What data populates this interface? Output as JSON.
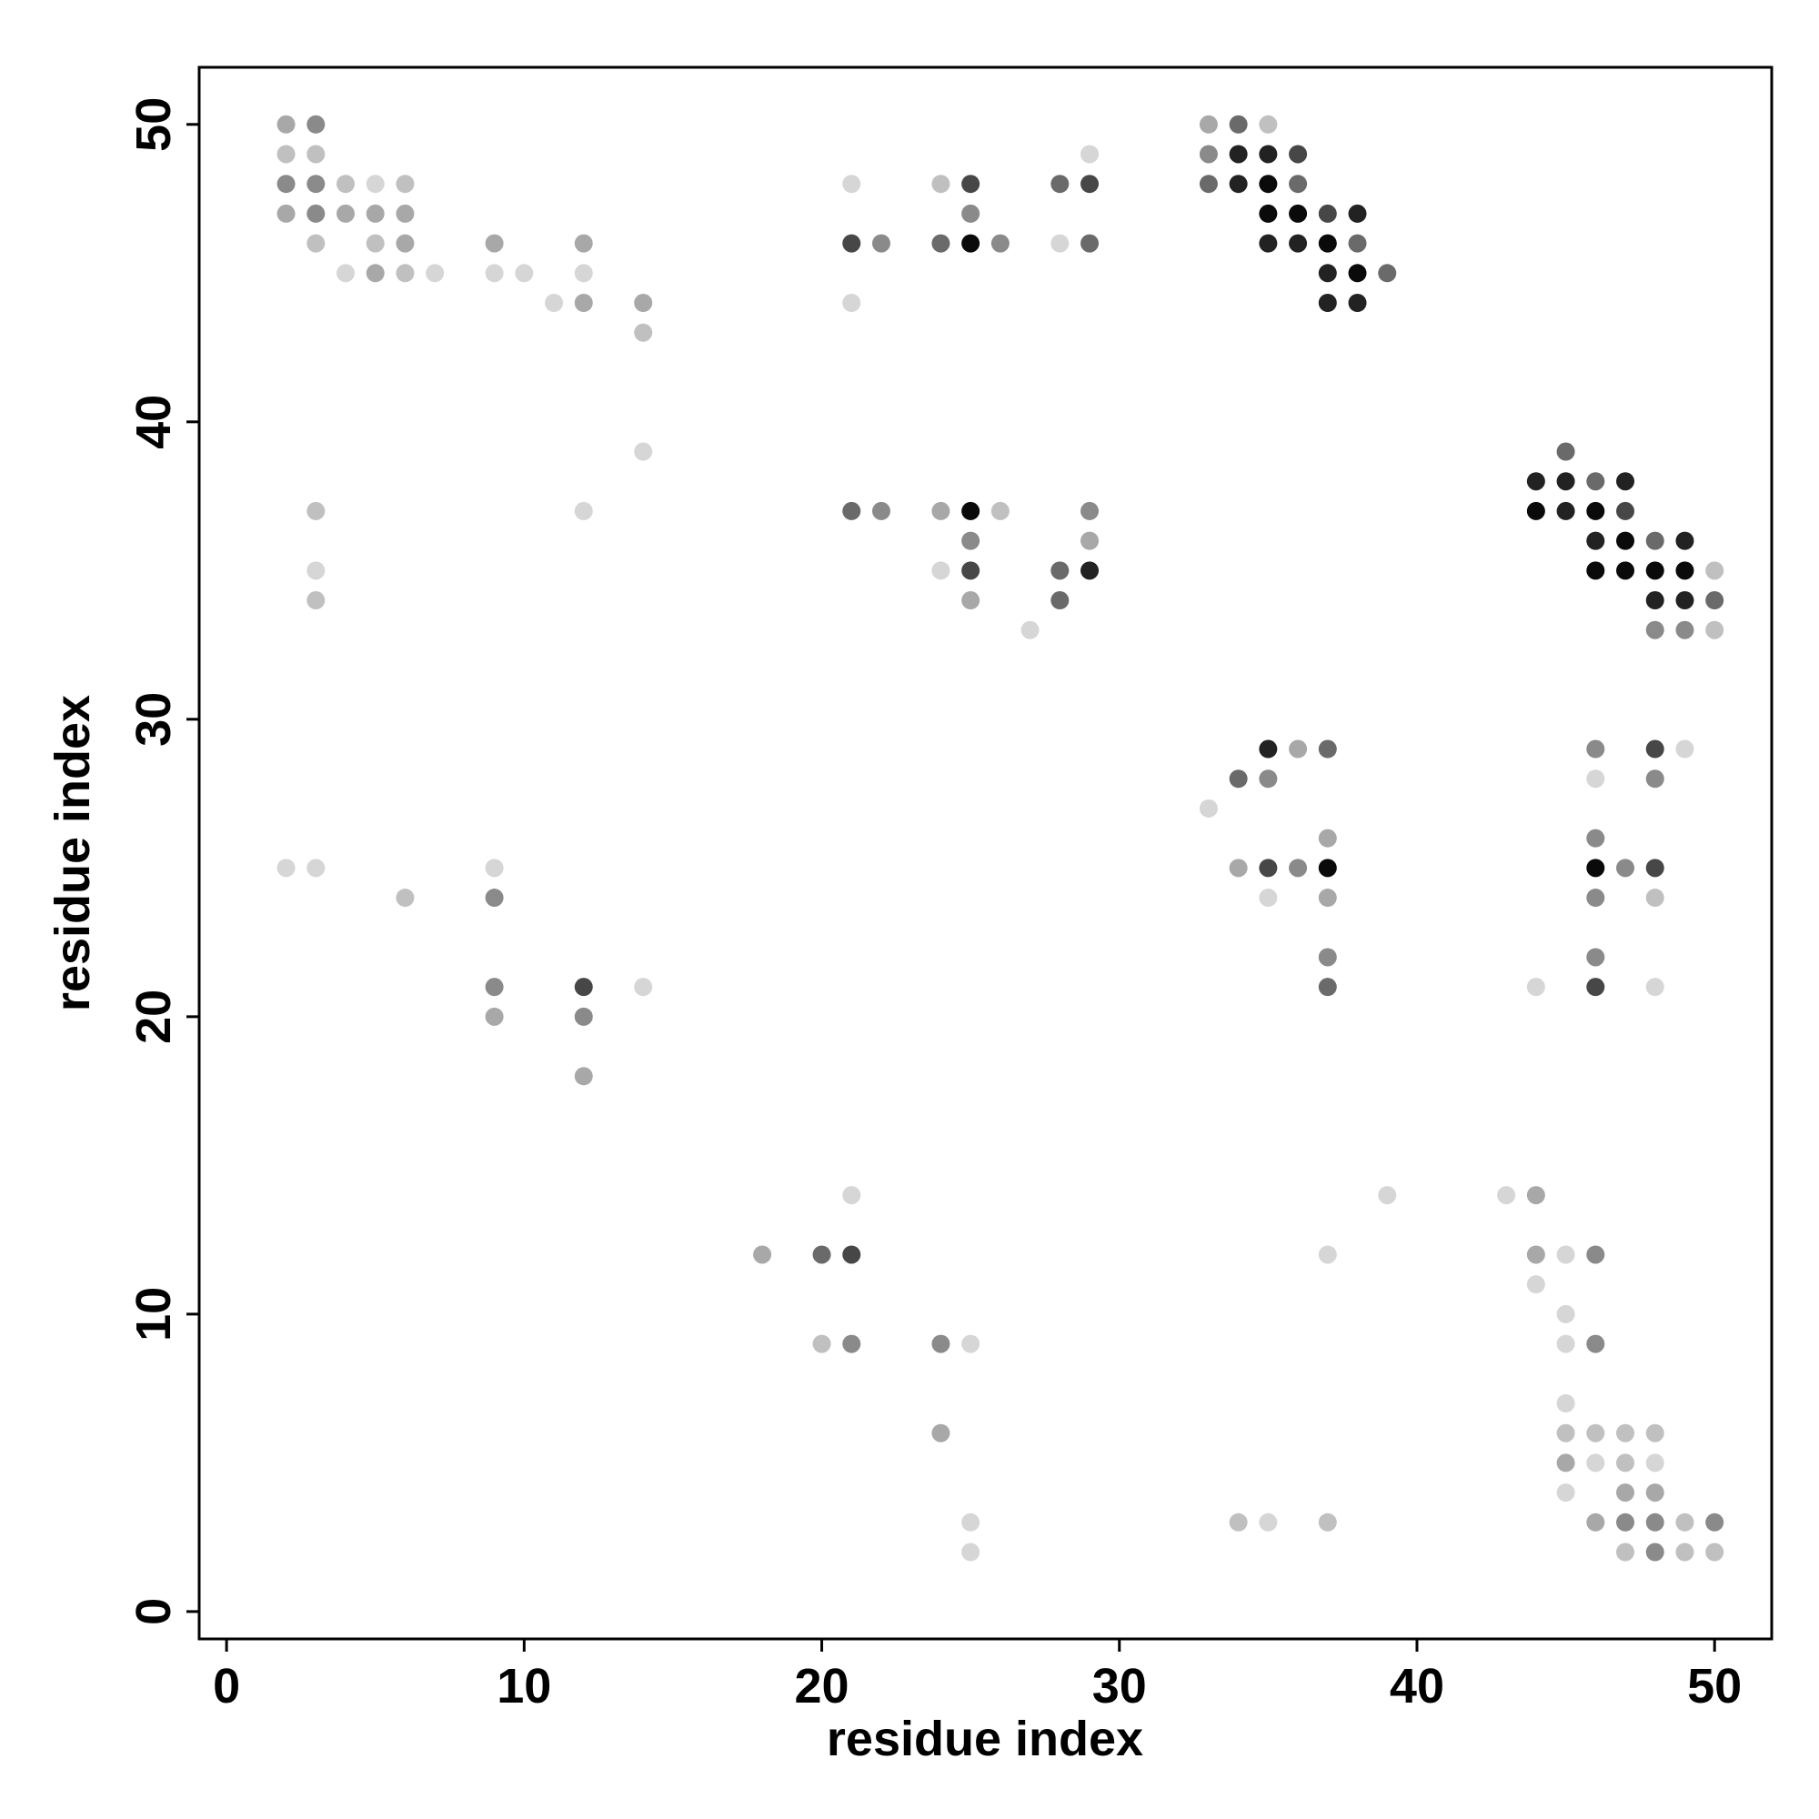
{
  "chart_data": {
    "type": "scatter",
    "xlabel": "residue index",
    "ylabel": "residue index",
    "xlim": [
      -0.92,
      51.92
    ],
    "ylim": [
      -0.92,
      51.92
    ],
    "xticks": [
      0,
      10,
      20,
      30,
      40,
      50
    ],
    "yticks": [
      0,
      10,
      20,
      30,
      40,
      50
    ],
    "points": [
      {
        "x": 2,
        "y": 50,
        "color": "#a8a8a8"
      },
      {
        "x": 3,
        "y": 50,
        "color": "#8a8a8a"
      },
      {
        "x": 33,
        "y": 50,
        "color": "#a8a8a8"
      },
      {
        "x": 34,
        "y": 50,
        "color": "#6a6a6a"
      },
      {
        "x": 35,
        "y": 50,
        "color": "#c0c0c0"
      },
      {
        "x": 2,
        "y": 49,
        "color": "#c0c0c0"
      },
      {
        "x": 3,
        "y": 49,
        "color": "#c0c0c0"
      },
      {
        "x": 29,
        "y": 49,
        "color": "#d6d6d6"
      },
      {
        "x": 33,
        "y": 49,
        "color": "#8a8a8a"
      },
      {
        "x": 34,
        "y": 49,
        "color": "#222222"
      },
      {
        "x": 35,
        "y": 49,
        "color": "#222222"
      },
      {
        "x": 36,
        "y": 49,
        "color": "#474747"
      },
      {
        "x": 2,
        "y": 48,
        "color": "#8a8a8a"
      },
      {
        "x": 3,
        "y": 48,
        "color": "#8a8a8a"
      },
      {
        "x": 4,
        "y": 48,
        "color": "#c0c0c0"
      },
      {
        "x": 5,
        "y": 48,
        "color": "#d6d6d6"
      },
      {
        "x": 6,
        "y": 48,
        "color": "#c0c0c0"
      },
      {
        "x": 21,
        "y": 48,
        "color": "#d6d6d6"
      },
      {
        "x": 24,
        "y": 48,
        "color": "#c0c0c0"
      },
      {
        "x": 25,
        "y": 48,
        "color": "#474747"
      },
      {
        "x": 28,
        "y": 48,
        "color": "#6a6a6a"
      },
      {
        "x": 29,
        "y": 48,
        "color": "#474747"
      },
      {
        "x": 33,
        "y": 48,
        "color": "#6a6a6a"
      },
      {
        "x": 34,
        "y": 48,
        "color": "#222222"
      },
      {
        "x": 35,
        "y": 48,
        "color": "#0a0a0a"
      },
      {
        "x": 36,
        "y": 48,
        "color": "#6a6a6a"
      },
      {
        "x": 2,
        "y": 47,
        "color": "#a8a8a8"
      },
      {
        "x": 3,
        "y": 47,
        "color": "#8a8a8a"
      },
      {
        "x": 4,
        "y": 47,
        "color": "#a8a8a8"
      },
      {
        "x": 5,
        "y": 47,
        "color": "#a8a8a8"
      },
      {
        "x": 6,
        "y": 47,
        "color": "#a8a8a8"
      },
      {
        "x": 25,
        "y": 47,
        "color": "#8a8a8a"
      },
      {
        "x": 35,
        "y": 47,
        "color": "#0a0a0a"
      },
      {
        "x": 36,
        "y": 47,
        "color": "#0a0a0a"
      },
      {
        "x": 37,
        "y": 47,
        "color": "#474747"
      },
      {
        "x": 38,
        "y": 47,
        "color": "#222222"
      },
      {
        "x": 3,
        "y": 46,
        "color": "#c0c0c0"
      },
      {
        "x": 5,
        "y": 46,
        "color": "#c0c0c0"
      },
      {
        "x": 6,
        "y": 46,
        "color": "#a8a8a8"
      },
      {
        "x": 9,
        "y": 46,
        "color": "#a8a8a8"
      },
      {
        "x": 12,
        "y": 46,
        "color": "#a8a8a8"
      },
      {
        "x": 21,
        "y": 46,
        "color": "#474747"
      },
      {
        "x": 22,
        "y": 46,
        "color": "#8a8a8a"
      },
      {
        "x": 24,
        "y": 46,
        "color": "#6a6a6a"
      },
      {
        "x": 25,
        "y": 46,
        "color": "#0a0a0a"
      },
      {
        "x": 26,
        "y": 46,
        "color": "#8a8a8a"
      },
      {
        "x": 28,
        "y": 46,
        "color": "#d6d6d6"
      },
      {
        "x": 29,
        "y": 46,
        "color": "#6a6a6a"
      },
      {
        "x": 35,
        "y": 46,
        "color": "#222222"
      },
      {
        "x": 36,
        "y": 46,
        "color": "#222222"
      },
      {
        "x": 37,
        "y": 46,
        "color": "#0a0a0a"
      },
      {
        "x": 38,
        "y": 46,
        "color": "#6a6a6a"
      },
      {
        "x": 4,
        "y": 45,
        "color": "#d6d6d6"
      },
      {
        "x": 5,
        "y": 45,
        "color": "#a8a8a8"
      },
      {
        "x": 6,
        "y": 45,
        "color": "#c0c0c0"
      },
      {
        "x": 7,
        "y": 45,
        "color": "#d6d6d6"
      },
      {
        "x": 9,
        "y": 45,
        "color": "#d6d6d6"
      },
      {
        "x": 10,
        "y": 45,
        "color": "#d6d6d6"
      },
      {
        "x": 12,
        "y": 45,
        "color": "#d6d6d6"
      },
      {
        "x": 37,
        "y": 45,
        "color": "#222222"
      },
      {
        "x": 38,
        "y": 45,
        "color": "#0a0a0a"
      },
      {
        "x": 39,
        "y": 45,
        "color": "#6a6a6a"
      },
      {
        "x": 11,
        "y": 44,
        "color": "#d6d6d6"
      },
      {
        "x": 12,
        "y": 44,
        "color": "#a8a8a8"
      },
      {
        "x": 14,
        "y": 44,
        "color": "#a8a8a8"
      },
      {
        "x": 21,
        "y": 44,
        "color": "#d6d6d6"
      },
      {
        "x": 37,
        "y": 44,
        "color": "#222222"
      },
      {
        "x": 38,
        "y": 44,
        "color": "#222222"
      },
      {
        "x": 14,
        "y": 43,
        "color": "#c0c0c0"
      },
      {
        "x": 14,
        "y": 39,
        "color": "#d6d6d6"
      },
      {
        "x": 45,
        "y": 39,
        "color": "#6a6a6a"
      },
      {
        "x": 44,
        "y": 38,
        "color": "#222222"
      },
      {
        "x": 45,
        "y": 38,
        "color": "#222222"
      },
      {
        "x": 46,
        "y": 38,
        "color": "#6a6a6a"
      },
      {
        "x": 47,
        "y": 38,
        "color": "#222222"
      },
      {
        "x": 3,
        "y": 37,
        "color": "#c0c0c0"
      },
      {
        "x": 12,
        "y": 37,
        "color": "#d6d6d6"
      },
      {
        "x": 21,
        "y": 37,
        "color": "#6a6a6a"
      },
      {
        "x": 22,
        "y": 37,
        "color": "#8a8a8a"
      },
      {
        "x": 24,
        "y": 37,
        "color": "#a8a8a8"
      },
      {
        "x": 25,
        "y": 37,
        "color": "#0a0a0a"
      },
      {
        "x": 26,
        "y": 37,
        "color": "#c0c0c0"
      },
      {
        "x": 29,
        "y": 37,
        "color": "#8a8a8a"
      },
      {
        "x": 44,
        "y": 37,
        "color": "#0a0a0a"
      },
      {
        "x": 45,
        "y": 37,
        "color": "#222222"
      },
      {
        "x": 46,
        "y": 37,
        "color": "#0a0a0a"
      },
      {
        "x": 47,
        "y": 37,
        "color": "#474747"
      },
      {
        "x": 25,
        "y": 36,
        "color": "#8a8a8a"
      },
      {
        "x": 29,
        "y": 36,
        "color": "#a8a8a8"
      },
      {
        "x": 46,
        "y": 36,
        "color": "#222222"
      },
      {
        "x": 47,
        "y": 36,
        "color": "#0a0a0a"
      },
      {
        "x": 48,
        "y": 36,
        "color": "#6a6a6a"
      },
      {
        "x": 49,
        "y": 36,
        "color": "#222222"
      },
      {
        "x": 3,
        "y": 35,
        "color": "#d6d6d6"
      },
      {
        "x": 24,
        "y": 35,
        "color": "#d6d6d6"
      },
      {
        "x": 25,
        "y": 35,
        "color": "#474747"
      },
      {
        "x": 28,
        "y": 35,
        "color": "#6a6a6a"
      },
      {
        "x": 29,
        "y": 35,
        "color": "#222222"
      },
      {
        "x": 46,
        "y": 35,
        "color": "#0a0a0a"
      },
      {
        "x": 47,
        "y": 35,
        "color": "#0a0a0a"
      },
      {
        "x": 48,
        "y": 35,
        "color": "#0a0a0a"
      },
      {
        "x": 49,
        "y": 35,
        "color": "#0a0a0a"
      },
      {
        "x": 50,
        "y": 35,
        "color": "#c0c0c0"
      },
      {
        "x": 3,
        "y": 34,
        "color": "#c0c0c0"
      },
      {
        "x": 25,
        "y": 34,
        "color": "#a8a8a8"
      },
      {
        "x": 28,
        "y": 34,
        "color": "#6a6a6a"
      },
      {
        "x": 48,
        "y": 34,
        "color": "#222222"
      },
      {
        "x": 49,
        "y": 34,
        "color": "#222222"
      },
      {
        "x": 50,
        "y": 34,
        "color": "#6a6a6a"
      },
      {
        "x": 27,
        "y": 33,
        "color": "#d6d6d6"
      },
      {
        "x": 48,
        "y": 33,
        "color": "#8a8a8a"
      },
      {
        "x": 49,
        "y": 33,
        "color": "#8a8a8a"
      },
      {
        "x": 50,
        "y": 33,
        "color": "#c0c0c0"
      },
      {
        "x": 35,
        "y": 29,
        "color": "#222222"
      },
      {
        "x": 36,
        "y": 29,
        "color": "#a8a8a8"
      },
      {
        "x": 37,
        "y": 29,
        "color": "#6a6a6a"
      },
      {
        "x": 46,
        "y": 29,
        "color": "#8a8a8a"
      },
      {
        "x": 48,
        "y": 29,
        "color": "#474747"
      },
      {
        "x": 49,
        "y": 29,
        "color": "#d6d6d6"
      },
      {
        "x": 34,
        "y": 28,
        "color": "#6a6a6a"
      },
      {
        "x": 35,
        "y": 28,
        "color": "#8a8a8a"
      },
      {
        "x": 46,
        "y": 28,
        "color": "#d6d6d6"
      },
      {
        "x": 48,
        "y": 28,
        "color": "#8a8a8a"
      },
      {
        "x": 33,
        "y": 27,
        "color": "#d6d6d6"
      },
      {
        "x": 37,
        "y": 26,
        "color": "#a8a8a8"
      },
      {
        "x": 46,
        "y": 26,
        "color": "#8a8a8a"
      },
      {
        "x": 2,
        "y": 25,
        "color": "#d6d6d6"
      },
      {
        "x": 3,
        "y": 25,
        "color": "#d6d6d6"
      },
      {
        "x": 9,
        "y": 25,
        "color": "#d6d6d6"
      },
      {
        "x": 34,
        "y": 25,
        "color": "#a8a8a8"
      },
      {
        "x": 35,
        "y": 25,
        "color": "#474747"
      },
      {
        "x": 36,
        "y": 25,
        "color": "#8a8a8a"
      },
      {
        "x": 37,
        "y": 25,
        "color": "#0a0a0a"
      },
      {
        "x": 46,
        "y": 25,
        "color": "#0a0a0a"
      },
      {
        "x": 47,
        "y": 25,
        "color": "#8a8a8a"
      },
      {
        "x": 48,
        "y": 25,
        "color": "#474747"
      },
      {
        "x": 6,
        "y": 24,
        "color": "#c0c0c0"
      },
      {
        "x": 9,
        "y": 24,
        "color": "#8a8a8a"
      },
      {
        "x": 35,
        "y": 24,
        "color": "#d6d6d6"
      },
      {
        "x": 37,
        "y": 24,
        "color": "#a8a8a8"
      },
      {
        "x": 46,
        "y": 24,
        "color": "#8a8a8a"
      },
      {
        "x": 48,
        "y": 24,
        "color": "#c0c0c0"
      },
      {
        "x": 37,
        "y": 22,
        "color": "#8a8a8a"
      },
      {
        "x": 46,
        "y": 22,
        "color": "#8a8a8a"
      },
      {
        "x": 9,
        "y": 21,
        "color": "#8a8a8a"
      },
      {
        "x": 12,
        "y": 21,
        "color": "#474747"
      },
      {
        "x": 14,
        "y": 21,
        "color": "#d6d6d6"
      },
      {
        "x": 37,
        "y": 21,
        "color": "#6a6a6a"
      },
      {
        "x": 44,
        "y": 21,
        "color": "#d6d6d6"
      },
      {
        "x": 46,
        "y": 21,
        "color": "#474747"
      },
      {
        "x": 48,
        "y": 21,
        "color": "#d6d6d6"
      },
      {
        "x": 9,
        "y": 20,
        "color": "#a8a8a8"
      },
      {
        "x": 12,
        "y": 20,
        "color": "#8a8a8a"
      },
      {
        "x": 12,
        "y": 18,
        "color": "#a8a8a8"
      },
      {
        "x": 21,
        "y": 14,
        "color": "#d6d6d6"
      },
      {
        "x": 39,
        "y": 14,
        "color": "#d6d6d6"
      },
      {
        "x": 43,
        "y": 14,
        "color": "#d6d6d6"
      },
      {
        "x": 44,
        "y": 14,
        "color": "#a8a8a8"
      },
      {
        "x": 18,
        "y": 12,
        "color": "#a8a8a8"
      },
      {
        "x": 20,
        "y": 12,
        "color": "#6a6a6a"
      },
      {
        "x": 21,
        "y": 12,
        "color": "#474747"
      },
      {
        "x": 37,
        "y": 12,
        "color": "#d6d6d6"
      },
      {
        "x": 44,
        "y": 12,
        "color": "#a8a8a8"
      },
      {
        "x": 45,
        "y": 12,
        "color": "#d6d6d6"
      },
      {
        "x": 46,
        "y": 12,
        "color": "#8a8a8a"
      },
      {
        "x": 44,
        "y": 11,
        "color": "#d6d6d6"
      },
      {
        "x": 45,
        "y": 10,
        "color": "#d6d6d6"
      },
      {
        "x": 20,
        "y": 9,
        "color": "#c0c0c0"
      },
      {
        "x": 21,
        "y": 9,
        "color": "#8a8a8a"
      },
      {
        "x": 24,
        "y": 9,
        "color": "#8a8a8a"
      },
      {
        "x": 25,
        "y": 9,
        "color": "#d6d6d6"
      },
      {
        "x": 45,
        "y": 9,
        "color": "#d6d6d6"
      },
      {
        "x": 46,
        "y": 9,
        "color": "#8a8a8a"
      },
      {
        "x": 45,
        "y": 7,
        "color": "#d6d6d6"
      },
      {
        "x": 24,
        "y": 6,
        "color": "#a8a8a8"
      },
      {
        "x": 45,
        "y": 6,
        "color": "#c0c0c0"
      },
      {
        "x": 46,
        "y": 6,
        "color": "#c0c0c0"
      },
      {
        "x": 47,
        "y": 6,
        "color": "#c0c0c0"
      },
      {
        "x": 48,
        "y": 6,
        "color": "#c0c0c0"
      },
      {
        "x": 45,
        "y": 5,
        "color": "#a8a8a8"
      },
      {
        "x": 46,
        "y": 5,
        "color": "#d6d6d6"
      },
      {
        "x": 47,
        "y": 5,
        "color": "#c0c0c0"
      },
      {
        "x": 48,
        "y": 5,
        "color": "#d6d6d6"
      },
      {
        "x": 45,
        "y": 4,
        "color": "#d6d6d6"
      },
      {
        "x": 47,
        "y": 4,
        "color": "#a8a8a8"
      },
      {
        "x": 48,
        "y": 4,
        "color": "#a8a8a8"
      },
      {
        "x": 25,
        "y": 3,
        "color": "#d6d6d6"
      },
      {
        "x": 34,
        "y": 3,
        "color": "#c0c0c0"
      },
      {
        "x": 35,
        "y": 3,
        "color": "#d6d6d6"
      },
      {
        "x": 37,
        "y": 3,
        "color": "#c0c0c0"
      },
      {
        "x": 46,
        "y": 3,
        "color": "#a8a8a8"
      },
      {
        "x": 47,
        "y": 3,
        "color": "#8a8a8a"
      },
      {
        "x": 48,
        "y": 3,
        "color": "#8a8a8a"
      },
      {
        "x": 49,
        "y": 3,
        "color": "#c0c0c0"
      },
      {
        "x": 50,
        "y": 3,
        "color": "#8a8a8a"
      },
      {
        "x": 25,
        "y": 2,
        "color": "#d6d6d6"
      },
      {
        "x": 47,
        "y": 2,
        "color": "#c0c0c0"
      },
      {
        "x": 48,
        "y": 2,
        "color": "#8a8a8a"
      },
      {
        "x": 49,
        "y": 2,
        "color": "#c0c0c0"
      },
      {
        "x": 50,
        "y": 2,
        "color": "#c0c0c0"
      }
    ]
  }
}
